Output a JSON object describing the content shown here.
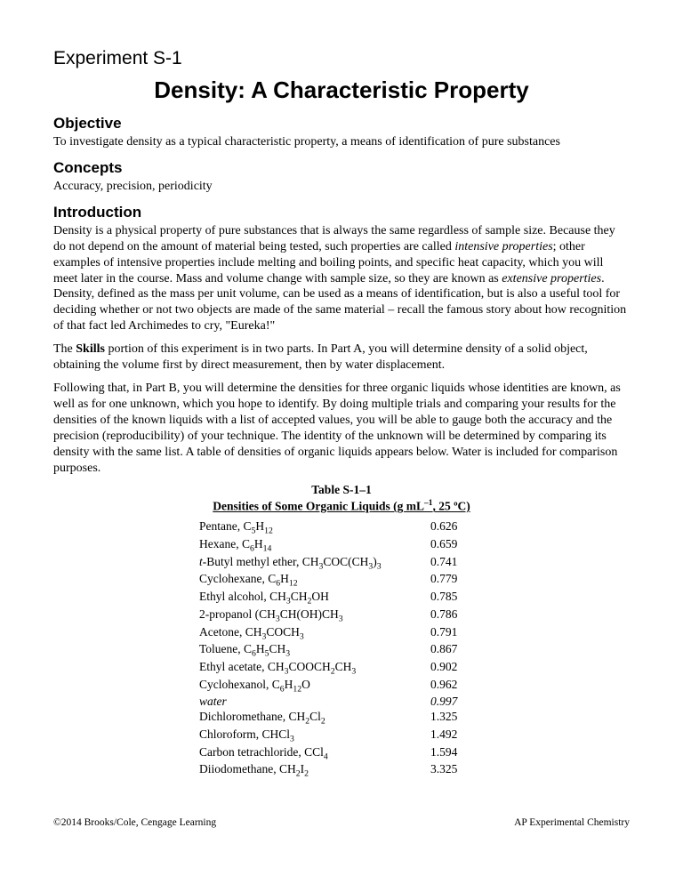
{
  "experiment_label": "Experiment S-1",
  "title": "Density:  A Characteristic Property",
  "sections": {
    "objective": {
      "heading": "Objective",
      "text": "To investigate density as a typical characteristic property, a means of identification of pure substances"
    },
    "concepts": {
      "heading": "Concepts",
      "text": "Accuracy, precision, periodicity"
    },
    "introduction": {
      "heading": "Introduction",
      "p1_a": "Density is a physical property of pure substances that is always the same regardless of sample size. Because they do not depend on the amount of material being tested, such properties are called ",
      "p1_i1": "intensive properties",
      "p1_b": "; other examples of intensive properties include melting and boiling points, and specific heat capacity, which you will meet later in the course. Mass and volume change with sample size, so they are known as ",
      "p1_i2": "extensive properties",
      "p1_c": ". Density, defined as the mass per unit volume, can be used as a means of identification, but is also a useful tool for deciding whether or not two objects are made of the same material – recall the famous story about how recognition of that fact led Archimedes to cry, \"Eureka!\"",
      "p2_a": "The ",
      "p2_b": "Skills",
      "p2_c": " portion of this experiment is in two parts. In Part A, you will determine density of a solid object, obtaining the volume first by direct measurement, then by water displacement.",
      "p3": "Following that, in Part B, you will determine the densities for three organic liquids whose identities are known, as well as for one unknown, which you hope to identify. By doing multiple trials and comparing your results for the densities of the known liquids with a list of accepted values, you will be able to gauge both the accuracy and the precision (reproducibility) of your technique. The identity of the unknown will be determined by comparing its density with the same list. A table of densities of organic liquids appears below. Water is included for comparison purposes."
    }
  },
  "table": {
    "caption": "Table S-1–1",
    "title_a": "Densities of Some Organic Liquids (g mL",
    "title_sup": "–1",
    "title_b": ", 25 ºC)",
    "rows": [
      {
        "name_a": "Pentane, C",
        "sub1": "5",
        "mid": "H",
        "sub2": "12",
        "tail": "",
        "value": "0.626",
        "italic": false
      },
      {
        "name_a": "Hexane, C",
        "sub1": "6",
        "mid": "H",
        "sub2": "14",
        "tail": "",
        "value": "0.659",
        "italic": false
      },
      {
        "name_a": "",
        "prefix_i": "t",
        "name_b": "-Butyl methyl ether, CH",
        "sub1": "3",
        "mid": "COC(CH",
        "sub2": "3",
        "tail_a": ")",
        "sub3": "3",
        "value": "0.741",
        "italic": false,
        "has_prefix": true
      },
      {
        "name_a": "Cyclohexane, C",
        "sub1": "6",
        "mid": "H",
        "sub2": "12",
        "tail": "",
        "value": "0.779",
        "italic": false
      },
      {
        "name_a": "Ethyl alcohol, CH",
        "sub1": "3",
        "mid": "CH",
        "sub2": "2",
        "tail": "OH",
        "value": "0.785",
        "italic": false
      },
      {
        "name_a": "2-propanol (CH",
        "sub1": "3",
        "mid": "CH(OH)CH",
        "sub2": "3",
        "tail": "",
        "value": "0.786",
        "italic": false
      },
      {
        "name_a": "Acetone, CH",
        "sub1": "3",
        "mid": "COCH",
        "sub2": "3",
        "tail": "",
        "value": "0.791",
        "italic": false
      },
      {
        "name_a": "Toluene, C",
        "sub1": "6",
        "mid": "H",
        "sub2": "5",
        "tail_a": "CH",
        "sub3": "3",
        "value": "0.867",
        "italic": false
      },
      {
        "name_a": "Ethyl acetate, CH",
        "sub1": "3",
        "mid": "COOCH",
        "sub2": "2",
        "tail_a": "CH",
        "sub3": "3",
        "value": "0.902",
        "italic": false
      },
      {
        "name_a": "Cyclohexanol, C",
        "sub1": "6",
        "mid": "H",
        "sub2": "12",
        "tail": "O",
        "value": "0.962",
        "italic": false
      },
      {
        "name_a": "water",
        "value": "0.997",
        "italic": true,
        "simple": true
      },
      {
        "name_a": "Dichloromethane, CH",
        "sub1": "2",
        "mid": "Cl",
        "sub2": "2",
        "tail": "",
        "value": "1.325",
        "italic": false
      },
      {
        "name_a": "Chloroform, CHCl",
        "sub1": "3",
        "value": "1.492",
        "simple2": true
      },
      {
        "name_a": "Carbon tetrachloride, CCl",
        "sub1": "4",
        "value": "1.594",
        "simple2": true
      },
      {
        "name_a": "Diiodomethane, CH",
        "sub1": "2",
        "mid": "I",
        "sub2": "2",
        "tail": "",
        "value": "3.325",
        "italic": false
      }
    ]
  },
  "footer": {
    "left": "©2014 Brooks/Cole, Cengage Learning",
    "right": "AP Experimental Chemistry"
  }
}
